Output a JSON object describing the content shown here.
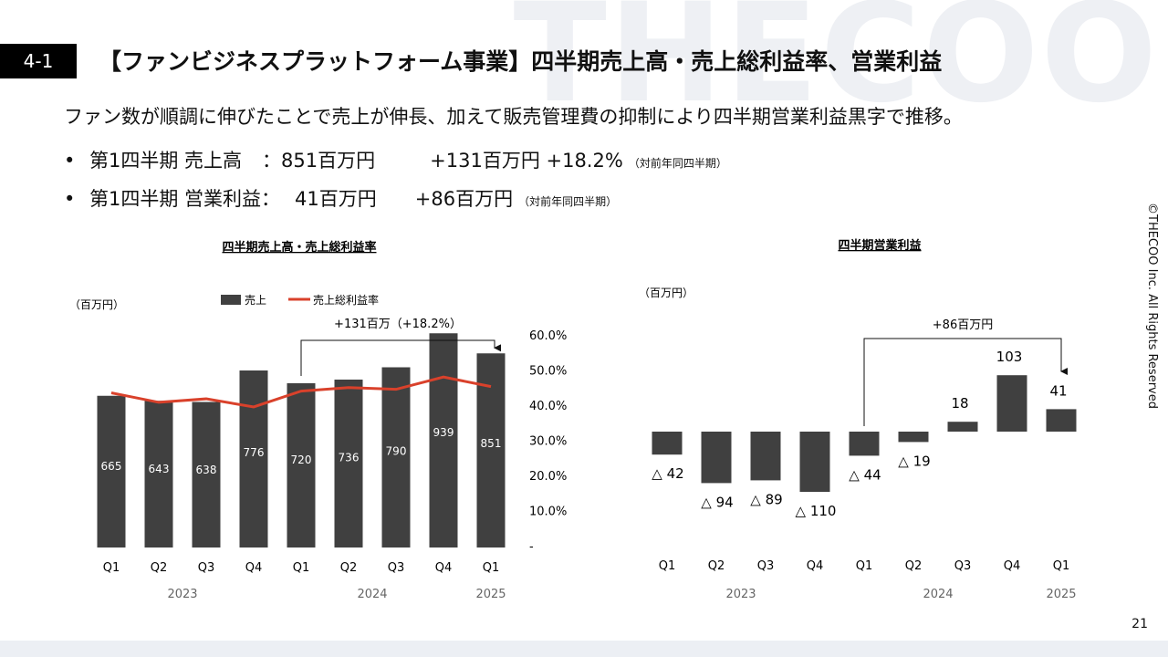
{
  "watermark": "THECOO",
  "section_number": "4-1",
  "title": "【ファンビジネスプラットフォーム事業】四半期売上高・売上総利益率、営業利益",
  "lead": "ファン数が順調に伸びたことで売上が伸長、加えて販売管理費の抑制により四半期営業利益黒字で推移。",
  "bullets": [
    {
      "label": "第1四半期 売上高",
      "separator": "：",
      "value": "851百万円",
      "change": "+131百万円 +18.2%",
      "note": "（対前年同四半期）"
    },
    {
      "label": "第1四半期 営業利益",
      "separator": "：",
      "value": "41百万円",
      "change": "+86百万円",
      "note": "（対前年同四半期）"
    }
  ],
  "copyright": "©THECOO Inc.  All Rights Reserved",
  "page_number": "21",
  "colors": {
    "bar": "#404040",
    "line": "#d9412b",
    "text": "#111111",
    "muted": "#666666"
  },
  "chart_data": [
    {
      "type": "bar",
      "title": "四半期売上高・売上総利益率",
      "unit": "（百万円）",
      "categories": [
        "Q1",
        "Q2",
        "Q3",
        "Q4",
        "Q1",
        "Q2",
        "Q3",
        "Q4",
        "Q1"
      ],
      "years": [
        {
          "label": "2023",
          "from": 0,
          "to": 3
        },
        {
          "label": "2024",
          "from": 4,
          "to": 7
        },
        {
          "label": "2025",
          "from": 8,
          "to": 8
        }
      ],
      "series": [
        {
          "name": "売上",
          "kind": "bar",
          "values": [
            665,
            643,
            638,
            776,
            720,
            736,
            790,
            939,
            851
          ]
        },
        {
          "name": "売上総利益率",
          "kind": "line",
          "axis": "right",
          "values": [
            43.5,
            40.8,
            41.8,
            39.5,
            44.0,
            45.0,
            44.5,
            48.0,
            45.3
          ]
        }
      ],
      "ylim": [
        0,
        1000
      ],
      "right_ylim": [
        0,
        60
      ],
      "right_ticks": [
        "-",
        "10.0%",
        "20.0%",
        "30.0%",
        "40.0%",
        "50.0%",
        "60.0%"
      ],
      "annotation": {
        "text": "+131百万（+18.2%）",
        "from": 4,
        "to": 8
      }
    },
    {
      "type": "bar",
      "title": "四半期営業利益",
      "unit": "（百万円）",
      "categories": [
        "Q1",
        "Q2",
        "Q3",
        "Q4",
        "Q1",
        "Q2",
        "Q3",
        "Q4",
        "Q1"
      ],
      "years": [
        {
          "label": "2023",
          "from": 0,
          "to": 3
        },
        {
          "label": "2024",
          "from": 4,
          "to": 7
        },
        {
          "label": "2025",
          "from": 8,
          "to": 8
        }
      ],
      "series": [
        {
          "name": "営業利益",
          "values": [
            -42,
            -94,
            -89,
            -110,
            -44,
            -19,
            18,
            103,
            41
          ]
        }
      ],
      "labels": [
        "△ 42",
        "△ 94",
        "△ 89",
        "△ 110",
        "△ 44",
        "△ 19",
        "18",
        "103",
        "41"
      ],
      "annotation": {
        "text": "+86百万円",
        "from": 4,
        "to": 8
      }
    }
  ]
}
